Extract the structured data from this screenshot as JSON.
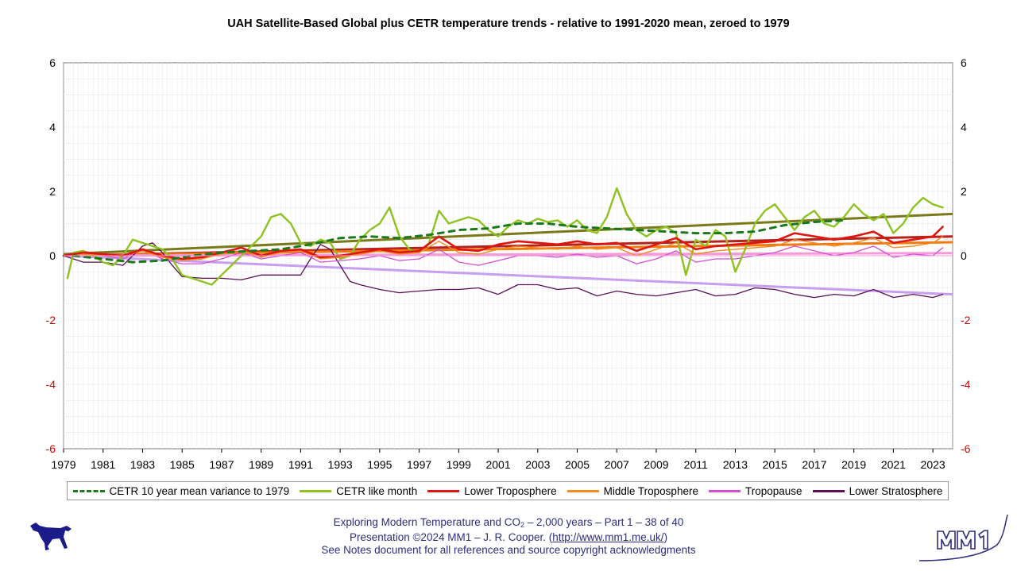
{
  "chart_data": {
    "type": "line",
    "title": "UAH Satellite-Based Global plus CETR temperature trends - relative to 1991-2020 mean, zeroed to 1979",
    "xlabel": "",
    "ylabel": "",
    "xlim": [
      1979,
      2024
    ],
    "ylim": [
      -6,
      6
    ],
    "grid": true,
    "x_ticks": [
      "1979",
      "1981",
      "1983",
      "1985",
      "1987",
      "1989",
      "1991",
      "1993",
      "1995",
      "1997",
      "1999",
      "2001",
      "2003",
      "2005",
      "2007",
      "2009",
      "2011",
      "2013",
      "2015",
      "2017",
      "2019",
      "2021",
      "2023"
    ],
    "y_ticks_left": [
      "6",
      "4",
      "2",
      "0",
      "-2",
      "-4",
      "-6"
    ],
    "y_ticks_right": [
      "6",
      "4",
      "2",
      "0",
      "-2",
      "-4",
      "-6"
    ],
    "legend_position": "bottom",
    "series": [
      {
        "name": "CETR 10 year mean variance to 1979",
        "color": "#1a7a1a",
        "style": "dashed",
        "x": [
          1979.5,
          1981,
          1982.5,
          1984,
          1985.5,
          1987,
          1988.5,
          1990,
          1991.5,
          1993,
          1994.5,
          1996,
          1997.5,
          1999,
          2000.5,
          2002,
          2003.5,
          2005,
          2006.5,
          2008,
          2009.5,
          2011,
          2012.5,
          2014,
          2015.5,
          2017,
          2018.5
        ],
        "values": [
          0.0,
          -0.1,
          -0.2,
          -0.15,
          0.0,
          0.1,
          0.15,
          0.2,
          0.35,
          0.55,
          0.6,
          0.55,
          0.65,
          0.8,
          0.85,
          1.0,
          1.0,
          0.9,
          0.85,
          0.8,
          0.75,
          0.7,
          0.7,
          0.75,
          0.95,
          1.05,
          1.1
        ]
      },
      {
        "name": "CETR like month",
        "color": "#8dc21f",
        "style": "solid",
        "x": [
          1979.2,
          1979.5,
          1980,
          1980.5,
          1981,
          1981.5,
          1982,
          1982.5,
          1983,
          1983.5,
          1984,
          1984.5,
          1985,
          1985.5,
          1986,
          1986.5,
          1987,
          1987.5,
          1988,
          1988.5,
          1989,
          1989.5,
          1990,
          1990.5,
          1991,
          1991.5,
          1992,
          1992.5,
          1993,
          1993.5,
          1994,
          1994.5,
          1995,
          1995.5,
          1996,
          1996.5,
          1997,
          1997.5,
          1998,
          1998.5,
          1999,
          1999.5,
          2000,
          2000.5,
          2001,
          2001.5,
          2002,
          2002.5,
          2003,
          2003.5,
          2004,
          2004.5,
          2005,
          2005.5,
          2006,
          2006.5,
          2007,
          2007.5,
          2008,
          2008.5,
          2009,
          2009.5,
          2010,
          2010.5,
          2011,
          2011.5,
          2012,
          2012.5,
          2013,
          2013.5,
          2014,
          2014.5,
          2015,
          2015.5,
          2016,
          2016.5,
          2017,
          2017.5,
          2018,
          2018.5,
          2019,
          2019.5,
          2020,
          2020.5,
          2021,
          2021.5,
          2022,
          2022.5,
          2023,
          2023.5
        ],
        "values": [
          -0.7,
          0.1,
          0.15,
          0.0,
          -0.2,
          -0.3,
          0.0,
          0.5,
          0.4,
          0.3,
          0.2,
          -0.1,
          -0.6,
          -0.7,
          -0.8,
          -0.9,
          -0.6,
          -0.3,
          0.0,
          0.3,
          0.6,
          1.2,
          1.3,
          1.0,
          0.4,
          0.3,
          0.5,
          0.4,
          -0.1,
          0.0,
          0.5,
          0.8,
          1.0,
          1.5,
          0.6,
          0.2,
          0.1,
          0.4,
          1.4,
          1.0,
          1.1,
          1.2,
          1.1,
          0.8,
          0.6,
          0.9,
          1.1,
          1.0,
          1.15,
          1.05,
          1.1,
          0.9,
          1.1,
          0.8,
          0.7,
          1.2,
          2.1,
          1.3,
          0.8,
          0.6,
          0.8,
          0.9,
          0.7,
          -0.6,
          0.5,
          0.3,
          0.8,
          0.6,
          -0.5,
          0.2,
          1.0,
          1.4,
          1.6,
          1.2,
          0.8,
          1.2,
          1.4,
          1.0,
          0.9,
          1.2,
          1.6,
          1.3,
          1.1,
          1.3,
          0.7,
          1.0,
          1.5,
          1.8,
          1.6,
          1.5
        ]
      },
      {
        "name": "Lower Troposphere",
        "color": "#e0160e",
        "style": "solid",
        "x": [
          1979,
          1980,
          1981,
          1982,
          1983,
          1984,
          1985,
          1986,
          1987,
          1988,
          1989,
          1990,
          1991,
          1992,
          1993,
          1994,
          1995,
          1996,
          1997,
          1998,
          1999,
          2000,
          2001,
          2002,
          2003,
          2004,
          2005,
          2006,
          2007,
          2008,
          2009,
          2010,
          2011,
          2012,
          2013,
          2014,
          2015,
          2016,
          2017,
          2018,
          2019,
          2020,
          2021,
          2022,
          2023,
          2023.5
        ],
        "values": [
          0.0,
          0.1,
          0.05,
          0.0,
          0.2,
          0.0,
          -0.1,
          -0.05,
          0.1,
          0.25,
          0.0,
          0.15,
          0.2,
          -0.05,
          0.0,
          0.1,
          0.2,
          0.1,
          0.15,
          0.6,
          0.2,
          0.15,
          0.35,
          0.45,
          0.4,
          0.35,
          0.45,
          0.35,
          0.4,
          0.15,
          0.35,
          0.55,
          0.2,
          0.3,
          0.35,
          0.4,
          0.45,
          0.7,
          0.6,
          0.5,
          0.6,
          0.75,
          0.4,
          0.5,
          0.6,
          0.9
        ]
      },
      {
        "name": "Middle Troposphere",
        "color": "#f28a1e",
        "style": "solid",
        "x": [
          1979,
          1980,
          1981,
          1982,
          1983,
          1984,
          1985,
          1986,
          1987,
          1988,
          1989,
          1990,
          1991,
          1992,
          1993,
          1994,
          1995,
          1996,
          1997,
          1998,
          1999,
          2000,
          2001,
          2002,
          2003,
          2004,
          2005,
          2006,
          2007,
          2008,
          2009,
          2010,
          2011,
          2012,
          2013,
          2014,
          2015,
          2016,
          2017,
          2018,
          2019,
          2020,
          2021,
          2022,
          2023,
          2023.5
        ],
        "values": [
          0.0,
          0.05,
          0.0,
          0.0,
          0.15,
          -0.05,
          -0.15,
          -0.1,
          0.05,
          0.15,
          -0.05,
          0.1,
          0.15,
          -0.1,
          -0.05,
          0.05,
          0.15,
          0.05,
          0.1,
          0.45,
          0.1,
          0.05,
          0.2,
          0.3,
          0.25,
          0.2,
          0.3,
          0.2,
          0.25,
          0.0,
          0.2,
          0.4,
          0.05,
          0.15,
          0.2,
          0.25,
          0.3,
          0.5,
          0.4,
          0.3,
          0.4,
          0.55,
          0.25,
          0.3,
          0.4,
          0.6
        ]
      },
      {
        "name": "Tropopause",
        "color": "#d34fd3",
        "style": "solid",
        "x": [
          1979,
          1980,
          1981,
          1982,
          1983,
          1984,
          1985,
          1986,
          1987,
          1988,
          1989,
          1990,
          1991,
          1992,
          1993,
          1994,
          1995,
          1996,
          1997,
          1998,
          1999,
          2000,
          2001,
          2002,
          2003,
          2004,
          2005,
          2006,
          2007,
          2008,
          2009,
          2010,
          2011,
          2012,
          2013,
          2014,
          2015,
          2016,
          2017,
          2018,
          2019,
          2020,
          2021,
          2022,
          2023,
          2023.5
        ],
        "values": [
          0.0,
          0.15,
          0.0,
          -0.1,
          0.2,
          -0.1,
          -0.25,
          -0.25,
          -0.1,
          0.1,
          -0.1,
          0.0,
          0.1,
          -0.2,
          -0.15,
          -0.1,
          0.0,
          -0.15,
          -0.1,
          0.2,
          -0.2,
          -0.3,
          -0.15,
          0.0,
          0.0,
          -0.05,
          0.05,
          -0.05,
          0.0,
          -0.25,
          -0.1,
          0.15,
          -0.2,
          -0.1,
          -0.1,
          0.0,
          0.1,
          0.3,
          0.15,
          0.0,
          0.1,
          0.3,
          -0.05,
          0.05,
          0.0,
          0.25
        ]
      },
      {
        "name": "Lower Stratosphere",
        "color": "#5b0f55",
        "style": "solid",
        "x": [
          1979,
          1980,
          1981,
          1982,
          1983,
          1983.5,
          1984,
          1984.5,
          1985,
          1986,
          1987,
          1988,
          1989,
          1990,
          1991,
          1991.5,
          1992,
          1992.5,
          1993,
          1993.5,
          1994,
          1995,
          1996,
          1997,
          1998,
          1999,
          2000,
          2001,
          2002,
          2003,
          2004,
          2005,
          2006,
          2007,
          2008,
          2009,
          2010,
          2011,
          2012,
          2013,
          2014,
          2015,
          2016,
          2017,
          2018,
          2019,
          2020,
          2021,
          2022,
          2023,
          2023.5
        ],
        "values": [
          0.0,
          -0.2,
          -0.2,
          -0.3,
          0.3,
          0.4,
          0.1,
          -0.3,
          -0.65,
          -0.7,
          -0.7,
          -0.75,
          -0.6,
          -0.6,
          -0.6,
          -0.1,
          0.35,
          0.2,
          -0.3,
          -0.8,
          -0.9,
          -1.05,
          -1.15,
          -1.1,
          -1.05,
          -1.05,
          -1.0,
          -1.2,
          -0.9,
          -0.9,
          -1.05,
          -1.0,
          -1.25,
          -1.1,
          -1.2,
          -1.25,
          -1.15,
          -1.05,
          -1.25,
          -1.2,
          -1.0,
          -1.05,
          -1.2,
          -1.3,
          -1.2,
          -1.25,
          -1.05,
          -1.3,
          -1.2,
          -1.3,
          -1.2
        ]
      }
    ],
    "trend_lines": [
      {
        "of": "CETR like month",
        "color": "#7a7a1a",
        "x": [
          1979,
          2024
        ],
        "values": [
          0.05,
          1.3
        ]
      },
      {
        "of": "Lower Troposphere",
        "color": "#b4221a",
        "x": [
          1979,
          2024
        ],
        "values": [
          0.0,
          0.6
        ]
      },
      {
        "of": "Middle Troposphere",
        "color": "#f07a10",
        "x": [
          1979,
          2024
        ],
        "values": [
          0.0,
          0.42
        ]
      },
      {
        "of": "Tropopause",
        "color": "#f59bd8",
        "x": [
          1979,
          2024
        ],
        "values": [
          0.0,
          0.08
        ]
      },
      {
        "of": "Lower Stratosphere",
        "color": "#c79ff0",
        "x": [
          1979,
          2024
        ],
        "values": [
          0.0,
          -1.2
        ]
      }
    ]
  },
  "legend": [
    {
      "label": "CETR 10 year mean variance to 1979",
      "color": "#1a7a1a",
      "style": "dashed"
    },
    {
      "label": "CETR like month",
      "color": "#8dc21f",
      "style": "solid"
    },
    {
      "label": "Lower Troposphere",
      "color": "#e0160e",
      "style": "solid"
    },
    {
      "label": "Middle Troposphere",
      "color": "#f28a1e",
      "style": "solid"
    },
    {
      "label": "Tropopause",
      "color": "#d34fd3",
      "style": "solid"
    },
    {
      "label": "Lower Stratosphere",
      "color": "#5b0f55",
      "style": "solid"
    }
  ],
  "footer": {
    "line1_prefix": "Exploring Modern Temperature and CO",
    "line1_sub": "2",
    "line1_suffix": " – 2,000 years – Part 1 – 38 of 40",
    "line2_prefix": "Presentation ©2024 MM1 – J. R. Cooper. (",
    "line2_link": "http://www.mm1.me.uk/",
    "line2_suffix": ")",
    "line3": "See Notes document for all references and source copyright acknowledgments"
  },
  "logos": {
    "left": "dog-logo",
    "right": "MM1"
  }
}
